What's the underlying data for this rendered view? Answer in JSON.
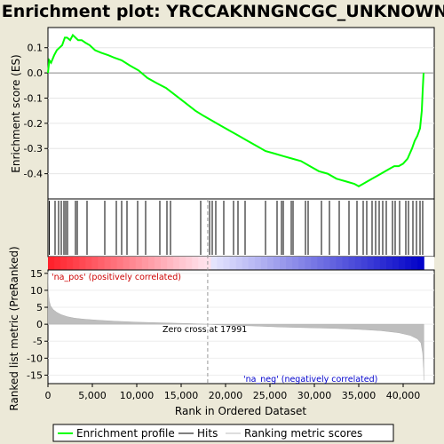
{
  "title": "Enrichment plot: YRCCAKNNGNCGC_UNKNOWN",
  "chart_data": [
    {
      "type": "line",
      "panel": "enrichment",
      "ylabel": "Enrichment score (ES)",
      "ylim": [
        -0.5,
        0.18
      ],
      "yticks": [
        0.1,
        0.0,
        -0.1,
        -0.2,
        -0.3,
        -0.4
      ],
      "ytick_labels": [
        "0.1",
        "0.0",
        "-0.1",
        "-0.2",
        "-0.3",
        "-0.4"
      ],
      "xlim": [
        0,
        43500
      ],
      "series": [
        {
          "name": "Enrichment profile",
          "color": "#00ff00",
          "x": [
            0,
            150,
            350,
            700,
            1000,
            1300,
            1600,
            1900,
            2150,
            2500,
            2800,
            3100,
            3400,
            3800,
            4200,
            4700,
            5300,
            6000,
            6800,
            7500,
            8300,
            9200,
            10200,
            11200,
            12200,
            13300,
            14400,
            15500,
            16600,
            17500,
            18500,
            19500,
            20500,
            21500,
            22500,
            23500,
            24500,
            25500,
            26500,
            27500,
            28500,
            29500,
            30500,
            31500,
            32500,
            33500,
            34500,
            35000,
            35500,
            36000,
            36500,
            37000,
            37500,
            38000,
            38500,
            39000,
            39500,
            40000,
            40500,
            41000,
            41300,
            41600,
            41900,
            42100,
            42200,
            42300
          ],
          "values": [
            0.0,
            0.05,
            0.04,
            0.07,
            0.09,
            0.1,
            0.11,
            0.14,
            0.14,
            0.13,
            0.15,
            0.14,
            0.13,
            0.13,
            0.12,
            0.11,
            0.09,
            0.08,
            0.07,
            0.06,
            0.05,
            0.03,
            0.01,
            -0.02,
            -0.04,
            -0.06,
            -0.09,
            -0.12,
            -0.15,
            -0.17,
            -0.19,
            -0.21,
            -0.23,
            -0.25,
            -0.27,
            -0.29,
            -0.31,
            -0.32,
            -0.33,
            -0.34,
            -0.35,
            -0.37,
            -0.39,
            -0.4,
            -0.42,
            -0.43,
            -0.44,
            -0.45,
            -0.44,
            -0.43,
            -0.42,
            -0.41,
            -0.4,
            -0.39,
            -0.38,
            -0.37,
            -0.37,
            -0.36,
            -0.34,
            -0.3,
            -0.27,
            -0.25,
            -0.22,
            -0.15,
            -0.07,
            0.0
          ]
        }
      ]
    },
    {
      "type": "scatter",
      "panel": "hits",
      "series": [
        {
          "name": "Hits",
          "color": "#000000",
          "x": [
            150,
            800,
            1200,
            1500,
            1800,
            2000,
            2200,
            3100,
            3300,
            4400,
            6400,
            7700,
            8300,
            8900,
            10100,
            11000,
            12600,
            13400,
            13800,
            17200,
            18200,
            18500,
            18900,
            19800,
            20900,
            21400,
            22200,
            24500,
            25800,
            26300,
            26500,
            27400,
            27600,
            29000,
            29300,
            30800,
            31700,
            32800,
            33900,
            34800,
            35500,
            35900,
            36500,
            36900,
            37300,
            37700,
            38100,
            38800,
            39100,
            39600,
            40300,
            40600,
            41100,
            41500,
            41900,
            42200
          ]
        }
      ]
    },
    {
      "type": "area",
      "panel": "ranked_list",
      "ylabel": "Ranked list metric (PreRanked)",
      "xlabel": "Rank in Ordered Dataset",
      "ylim": [
        -17.5,
        16
      ],
      "yticks": [
        15,
        10,
        5,
        0,
        -5,
        -10,
        -15
      ],
      "ytick_labels": [
        "15",
        "10",
        "5",
        "0",
        "-5",
        "-10",
        "-15"
      ],
      "xticks": [
        0,
        5000,
        10000,
        15000,
        20000,
        25000,
        30000,
        35000,
        40000
      ],
      "xtick_labels": [
        "0",
        "5,000",
        "10,000",
        "15,000",
        "20,000",
        "25,000",
        "30,000",
        "35,000",
        "40,000"
      ],
      "xlim": [
        0,
        43500
      ],
      "series": [
        {
          "name": "Ranking metric scores",
          "color": "#bebebe",
          "x": [
            0,
            50,
            150,
            300,
            600,
            1000,
            1500,
            2200,
            3000,
            4000,
            5500,
            7500,
            10000,
            13000,
            16000,
            17991,
            20000,
            23000,
            26000,
            29000,
            32000,
            35000,
            37500,
            39500,
            40800,
            41600,
            42000,
            42200,
            42300,
            42330
          ],
          "values": [
            15.5,
            9.0,
            6.8,
            5.4,
            4.3,
            3.5,
            2.8,
            2.2,
            1.8,
            1.5,
            1.2,
            0.9,
            0.6,
            0.4,
            0.2,
            0.0,
            -0.3,
            -0.5,
            -0.8,
            -1.0,
            -1.2,
            -1.5,
            -1.9,
            -2.5,
            -3.3,
            -4.3,
            -5.5,
            -8.5,
            -13.0,
            -16.5
          ]
        }
      ],
      "annotations": {
        "zero_cross": "Zero cross at 17991",
        "zero_cross_x": 17991,
        "na_pos": "'na_pos' (positively correlated)",
        "na_neg": "'na_neg' (negatively correlated)"
      }
    }
  ],
  "legend": {
    "items": [
      {
        "label": "Enrichment profile",
        "color": "#00ff00"
      },
      {
        "label": "Hits",
        "color": "#000000"
      },
      {
        "label": "Ranking metric scores",
        "color": "#bebebe"
      }
    ]
  },
  "colors": {
    "background": "#ece9d8",
    "enrichment_line": "#00ff00",
    "pos_label": "#cc0000",
    "neg_label": "#0000cc"
  }
}
